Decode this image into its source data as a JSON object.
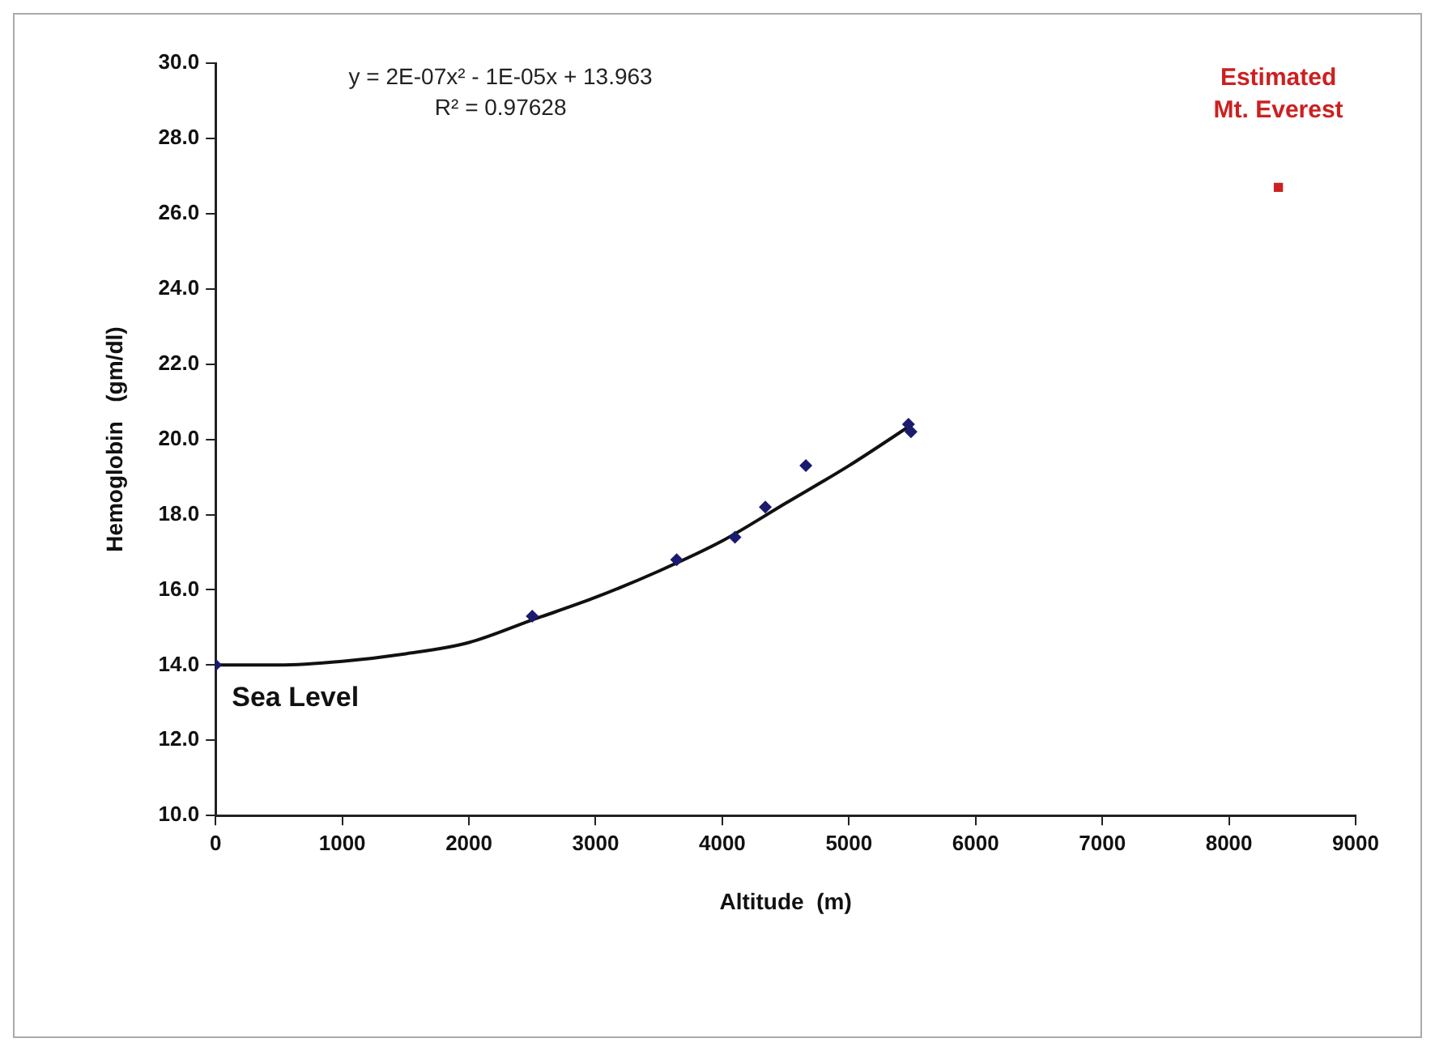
{
  "chart_data": {
    "type": "scatter",
    "xlabel": "Altitude  (m)",
    "ylabel": "Hemoglobin   (gm/dl)",
    "xlim": [
      0,
      9000
    ],
    "xticks": [
      0,
      1000,
      2000,
      3000,
      4000,
      5000,
      6000,
      7000,
      8000,
      9000
    ],
    "ylim": [
      10,
      30
    ],
    "yticks": [
      {
        "value": 10,
        "label": "10.0"
      },
      {
        "value": 12,
        "label": "12.0"
      },
      {
        "value": 14,
        "label": "14.0"
      },
      {
        "value": 16,
        "label": "16.0"
      },
      {
        "value": 18,
        "label": "18.0"
      },
      {
        "value": 20,
        "label": "20.0"
      },
      {
        "value": 22,
        "label": "22.0"
      },
      {
        "value": 24,
        "label": "24.0"
      },
      {
        "value": 26,
        "label": "26.0"
      },
      {
        "value": 28,
        "label": "28.0"
      },
      {
        "value": 30,
        "label": "30.0"
      }
    ],
    "grid": false,
    "legend": false,
    "marker": "diamond",
    "series": [
      {
        "type": "scatter",
        "color": "#1a1a70",
        "x": [
          0,
          2500,
          3640,
          4100,
          4340,
          4660,
          5470,
          5490
        ],
        "values": [
          14.0,
          15.3,
          16.8,
          17.4,
          18.2,
          19.3,
          20.4,
          20.2
        ]
      },
      {
        "type": "scatter",
        "color": "#cc2020",
        "marker": "square",
        "x": [
          8390
        ],
        "values": [
          26.7
        ]
      },
      {
        "type": "line",
        "color": "#111111",
        "marker": "none",
        "x": [
          0,
          500,
          1000,
          1500,
          2000,
          2500,
          3000,
          3500,
          4000,
          4500,
          5000,
          5500
        ],
        "values": [
          14.0,
          14.0,
          14.1,
          14.3,
          14.6,
          15.2,
          15.8,
          16.5,
          17.3,
          18.3,
          19.3,
          20.4
        ]
      }
    ],
    "annotations": [
      "y = 2E-07x² - 1E-05x + 13.963",
      "R² = 0.97628",
      {
        "text": "Sea Level",
        "x": 0,
        "y": 14.0
      },
      {
        "text": "Estimated Mt. Everest",
        "x": 8390,
        "y": 26.7
      }
    ]
  }
}
